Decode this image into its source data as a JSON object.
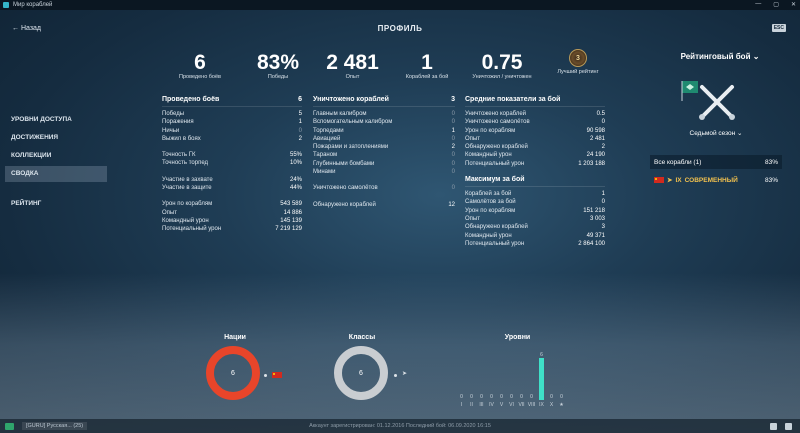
{
  "window": {
    "title": "Мир кораблей"
  },
  "header": {
    "back_label": "Назад",
    "title": "ПРОФИЛЬ",
    "esc_label": "ESC"
  },
  "summary": [
    {
      "value": "6",
      "label": "Проведено боёв"
    },
    {
      "value": "83%",
      "label": "Победы"
    },
    {
      "value": "2 481",
      "label": "Опыт"
    },
    {
      "value": "1",
      "label": "Кораблей за бой"
    },
    {
      "value": "0.75",
      "label": "Уничтожил / уничтожен"
    },
    {
      "value": "",
      "label": "Лучший рейтинг",
      "badge": "3"
    }
  ],
  "sidebar": {
    "items": [
      {
        "label": "УРОВНИ ДОСТУПА"
      },
      {
        "label": "ДОСТИЖЕНИЯ"
      },
      {
        "label": "КОЛЛЕКЦИИ"
      },
      {
        "label": "СВОДКА"
      },
      {
        "label": "РЕЙТИНГ"
      }
    ]
  },
  "col1": {
    "title": "Проведено боёв",
    "title_value": "6",
    "rows": [
      {
        "label": "Победы",
        "value": "5"
      },
      {
        "label": "Поражения",
        "value": "1"
      },
      {
        "label": "Ничьи",
        "value": "0"
      },
      {
        "label": "Выжил в боях",
        "value": "2"
      },
      {
        "label": "Точность ГК",
        "value": "55%"
      },
      {
        "label": "Точность торпед",
        "value": "10%"
      },
      {
        "label": "Участие в захвате",
        "value": "24%"
      },
      {
        "label": "Участие в защите",
        "value": "44%"
      },
      {
        "label": "Урон по кораблям",
        "value": "543 589"
      },
      {
        "label": "Опыт",
        "value": "14 886"
      },
      {
        "label": "Командный урон",
        "value": "145 139"
      },
      {
        "label": "Потенциальный урон",
        "value": "7 219 129"
      }
    ]
  },
  "col2": {
    "title": "Уничтожено кораблей",
    "title_value": "3",
    "rows": [
      {
        "label": "Главным калибром",
        "value": "0"
      },
      {
        "label": "Вспомогательным калибром",
        "value": "0"
      },
      {
        "label": "Торпедами",
        "value": "1"
      },
      {
        "label": "Авиацией",
        "value": "0"
      },
      {
        "label": "Пожарами и затоплениями",
        "value": "2"
      },
      {
        "label": "Тараном",
        "value": "0"
      },
      {
        "label": "Глубинными бомбами",
        "value": "0"
      },
      {
        "label": "Минами",
        "value": "0"
      },
      {
        "label": "Уничтожено самолётов",
        "value": "0"
      },
      {
        "label": "Обнаружено кораблей",
        "value": "12"
      }
    ]
  },
  "col3": {
    "title": "Средние показатели за бой",
    "rows": [
      {
        "label": "Уничтожено кораблей",
        "value": "0.5"
      },
      {
        "label": "Уничтожено самолётов",
        "value": "0"
      },
      {
        "label": "Урон по кораблям",
        "value": "90 598"
      },
      {
        "label": "Опыт",
        "value": "2 481"
      },
      {
        "label": "Обнаружено кораблей",
        "value": "2"
      },
      {
        "label": "Командный урон",
        "value": "24 190"
      },
      {
        "label": "Потенциальный урон",
        "value": "1 203 188"
      }
    ],
    "max_title": "Максимум за бой",
    "max_rows": [
      {
        "label": "Кораблей за бой",
        "value": "1"
      },
      {
        "label": "Самолётов за бой",
        "value": "0"
      },
      {
        "label": "Урон по кораблям",
        "value": "151 218"
      },
      {
        "label": "Опыт",
        "value": "3 003"
      },
      {
        "label": "Обнаружено кораблей",
        "value": "3"
      },
      {
        "label": "Командный урон",
        "value": "49 371"
      },
      {
        "label": "Потенциальный урон",
        "value": "2 864 100"
      }
    ]
  },
  "right": {
    "mode": "Рейтинговый бой",
    "season": "Седьмой сезон",
    "all_ships_label": "Все корабли (1)",
    "all_ships_value": "83%",
    "ship_tier": "IX",
    "ship_name": "СОВРЕМЕННЫЙ",
    "ship_value": "83%"
  },
  "graphs": {
    "nations_title": "Нации",
    "nations_value": "6",
    "classes_title": "Классы",
    "classes_value": "6",
    "tiers_title": "Уровни",
    "tiers": [
      {
        "label": "I",
        "count": "0",
        "value": 0
      },
      {
        "label": "II",
        "count": "0",
        "value": 0
      },
      {
        "label": "III",
        "count": "0",
        "value": 0
      },
      {
        "label": "IV",
        "count": "0",
        "value": 0
      },
      {
        "label": "V",
        "count": "0",
        "value": 0
      },
      {
        "label": "VI",
        "count": "0",
        "value": 0
      },
      {
        "label": "VII",
        "count": "0",
        "value": 0
      },
      {
        "label": "VIII",
        "count": "0",
        "value": 0
      },
      {
        "label": "IX",
        "count": "6",
        "value": 6
      },
      {
        "label": "X",
        "count": "0",
        "value": 0
      },
      {
        "label": "★",
        "count": "0",
        "value": 0
      }
    ],
    "tier_max": 6
  },
  "bottom": {
    "chat_tab": "[GURU] Русская...",
    "chat_count": "(25)",
    "reg_info": "Аккаунт зарегистрирован: 01.12.2016 Последний бой: 06.09.2020 16:15"
  },
  "colors": {
    "accent_teal": "#3fe0c8",
    "nations_red": "#e8452a",
    "ship_gold": "#f2c14e"
  }
}
